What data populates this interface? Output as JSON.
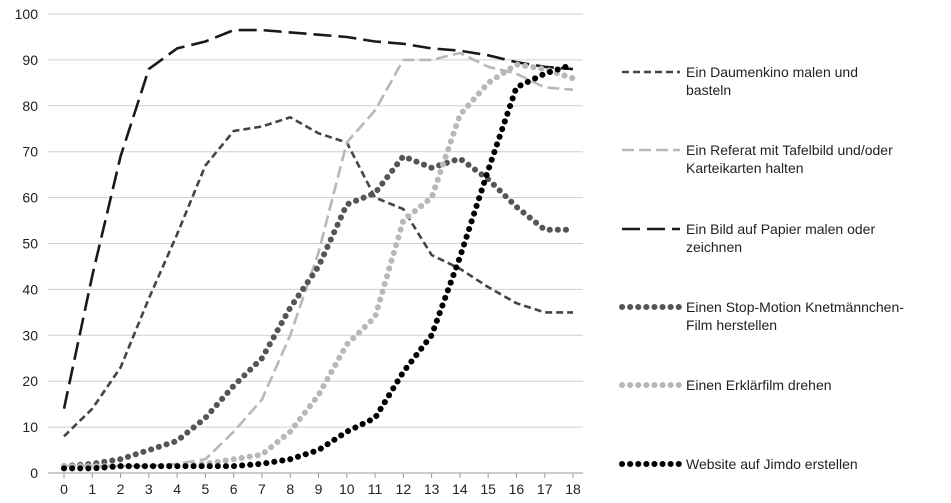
{
  "chart_data": {
    "type": "line",
    "title": "",
    "xlabel": "",
    "ylabel": "",
    "x": [
      0,
      1,
      2,
      3,
      4,
      5,
      6,
      7,
      8,
      9,
      10,
      11,
      12,
      13,
      14,
      15,
      16,
      17,
      18
    ],
    "ylim": [
      0,
      100
    ],
    "yticks": [
      0,
      10,
      20,
      30,
      40,
      50,
      60,
      70,
      80,
      90,
      100
    ],
    "grid": "horizontal",
    "legend_position": "right",
    "series": [
      {
        "name": "Ein Daumenkino malen und basteln",
        "legend_lines": [
          "Ein Daumenkino malen und",
          "basteln"
        ],
        "style": "dashed-short",
        "color": "#444444",
        "values": [
          8,
          14,
          23,
          38,
          52,
          67,
          74.5,
          75.5,
          77.5,
          74,
          72,
          60,
          57.5,
          47.5,
          44.5,
          40.5,
          37,
          35,
          35
        ]
      },
      {
        "name": "Ein Referat mit Tafelbild und/oder Karteikarten halten",
        "legend_lines": [
          "Ein Referat mit Tafelbild und/oder",
          "Karteikarten halten"
        ],
        "style": "dashed-medium",
        "color": "#b8b8b8",
        "values": [
          1.5,
          1.5,
          1.5,
          1.5,
          2,
          3,
          9,
          16,
          30,
          48,
          72,
          79,
          90,
          90,
          91.5,
          88.5,
          87,
          84,
          83.5
        ]
      },
      {
        "name": "Ein Bild auf Papier malen oder zeichnen",
        "legend_lines": [
          "Ein Bild auf Papier malen oder",
          "zeichnen"
        ],
        "style": "dashed-long",
        "color": "#1a1a1a",
        "values": [
          14,
          43,
          69,
          88,
          92.5,
          94,
          96.5,
          96.5,
          96,
          95.5,
          95,
          94,
          93.5,
          92.5,
          92,
          91,
          89.5,
          88.5,
          88
        ]
      },
      {
        "name": "Einen Stop-Motion Knetmännchen-Film herstellen",
        "legend_lines": [
          "Einen Stop-Motion Knetmännchen-",
          "Film herstellen"
        ],
        "style": "dotted-dark",
        "color": "#555555",
        "values": [
          1.5,
          2,
          3,
          5,
          7,
          12,
          19,
          25,
          36,
          45,
          58.5,
          61,
          69,
          66.5,
          68.5,
          64,
          58,
          53,
          53
        ]
      },
      {
        "name": "Einen Erklärfilm drehen",
        "legend_lines": [
          "Einen Erklärfilm drehen"
        ],
        "style": "dotted-light",
        "color": "#b8b8b8",
        "values": [
          1.5,
          1.5,
          1.5,
          1.5,
          1.5,
          2,
          3,
          4,
          9,
          17,
          28,
          34,
          55,
          60,
          78,
          85,
          89,
          88,
          86
        ]
      },
      {
        "name": "Website auf Jimdo erstellen",
        "legend_lines": [
          "Website auf Jimdo erstellen"
        ],
        "style": "dotted-black",
        "color": "#000000",
        "values": [
          1,
          1,
          1.5,
          1.5,
          1.5,
          1.5,
          1.5,
          2,
          3,
          5,
          9,
          12,
          22,
          30,
          47,
          66,
          84,
          87,
          89
        ]
      }
    ]
  }
}
